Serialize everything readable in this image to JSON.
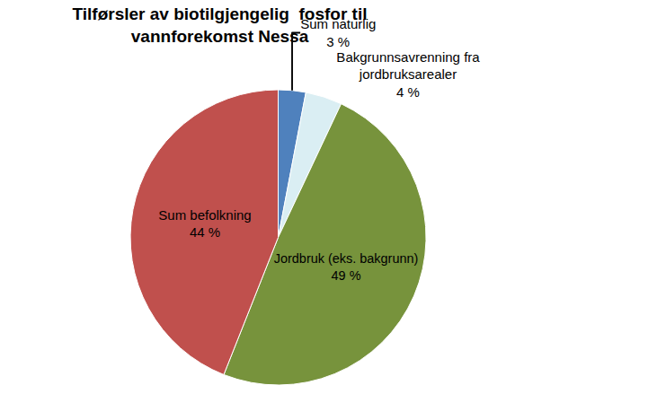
{
  "chart_data": {
    "type": "pie",
    "title": "Tilførsler av biotilgjengelig  fosfor til vannforekomst Nessa",
    "categories": [
      "Sum naturlig",
      "Bakgrunnsavrenning fra jordbruksarealer",
      "Jordbruk (eks. bakgrunn)",
      "Sum befolkning"
    ],
    "values": [
      3,
      4,
      49,
      44
    ],
    "value_labels": [
      "3 %",
      "4 %",
      "49 %",
      "44 %"
    ],
    "colors": [
      "#4f81bd",
      "#daeef3",
      "#77933c",
      "#c0504d"
    ],
    "data_labels": true
  }
}
